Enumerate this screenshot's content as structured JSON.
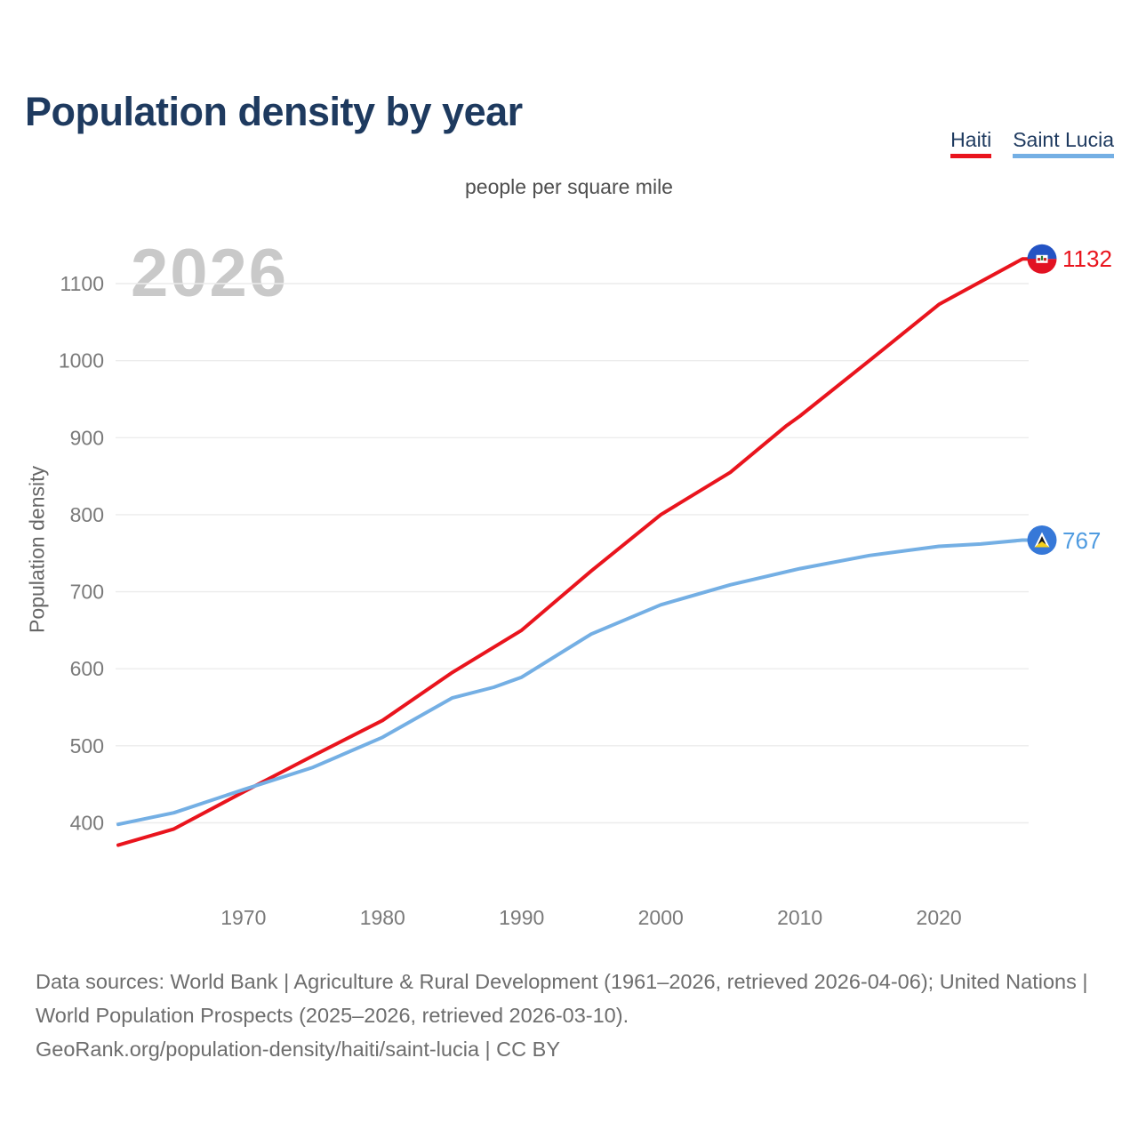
{
  "page": {
    "title": "Population density by year",
    "subtitle": "people per square mile",
    "watermark_year": "2026",
    "y_axis_label": "Population density"
  },
  "legend": [
    {
      "label": "Haiti",
      "color": "#e9141d"
    },
    {
      "label": "Saint Lucia",
      "color": "#74afe4"
    }
  ],
  "footer": {
    "sources": "Data sources: World Bank | Agriculture & Rural Development (1961–2026, retrieved 2026-04-06); United Nations | World Population Prospects (2025–2026, retrieved 2026-03-10).",
    "attribution": "GeoRank.org/population-density/haiti/saint-lucia | CC BY"
  },
  "chart_data": {
    "type": "line",
    "title": "Population density by year",
    "subtitle": "people per square mile",
    "ylabel": "Population density",
    "xlabel": "",
    "xlim": [
      1961,
      2026
    ],
    "ylim": [
      400,
      1100
    ],
    "xticks": [
      1970,
      1980,
      1990,
      2000,
      2010,
      2020
    ],
    "yticks": [
      400,
      500,
      600,
      700,
      800,
      900,
      1000,
      1100
    ],
    "grid": "horizontal",
    "legend_position": "top-right",
    "watermark": "2026",
    "series": [
      {
        "name": "Haiti",
        "color": "#e9141d",
        "label_color": "#e9141d",
        "end_value": 1132,
        "end_label": "1132",
        "points": [
          [
            1961,
            371
          ],
          [
            1965,
            392
          ],
          [
            1970,
            440
          ],
          [
            1975,
            487
          ],
          [
            1980,
            533
          ],
          [
            1985,
            595
          ],
          [
            1990,
            650
          ],
          [
            1995,
            727
          ],
          [
            2000,
            800
          ],
          [
            2005,
            855
          ],
          [
            2009,
            915
          ],
          [
            2010,
            928
          ],
          [
            2015,
            1000
          ],
          [
            2020,
            1073
          ],
          [
            2026,
            1132
          ]
        ]
      },
      {
        "name": "Saint Lucia",
        "color": "#74afe4",
        "label_color": "#4f9be0",
        "end_value": 767,
        "end_label": "767",
        "points": [
          [
            1961,
            398
          ],
          [
            1965,
            413
          ],
          [
            1970,
            443
          ],
          [
            1975,
            472
          ],
          [
            1980,
            511
          ],
          [
            1985,
            562
          ],
          [
            1988,
            576
          ],
          [
            1990,
            589
          ],
          [
            1995,
            645
          ],
          [
            2000,
            683
          ],
          [
            2005,
            709
          ],
          [
            2010,
            730
          ],
          [
            2015,
            747
          ],
          [
            2020,
            759
          ],
          [
            2023,
            762
          ],
          [
            2026,
            767
          ]
        ]
      }
    ]
  }
}
